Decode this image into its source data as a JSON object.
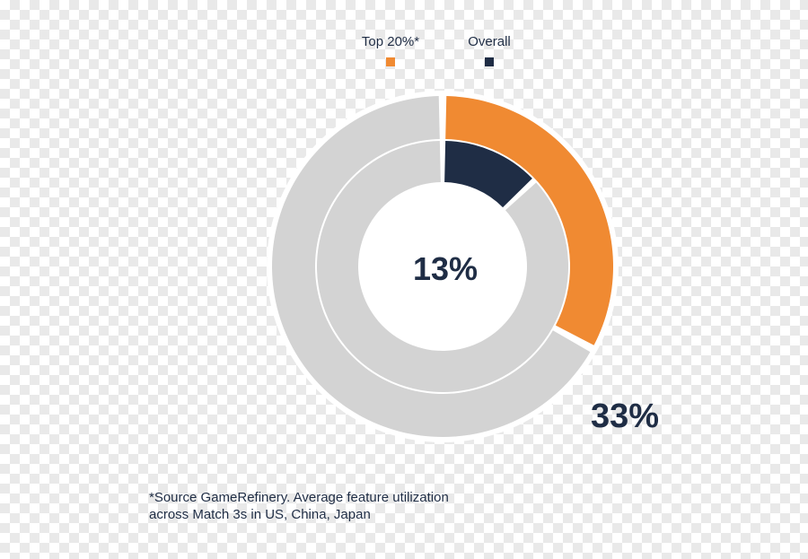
{
  "chart_data": {
    "type": "pie",
    "variant": "nested-donut",
    "legend": [
      {
        "label": "Top 20%*",
        "color": "#f08a32"
      },
      {
        "label": "Overall",
        "color": "#1f2d45"
      }
    ],
    "series": [
      {
        "name": "Top 20%*",
        "value": 33,
        "label": "33%",
        "ring": "outer",
        "color": "#f08a32"
      },
      {
        "name": "Overall",
        "value": 13,
        "label": "13%",
        "ring": "inner",
        "color": "#1f2d45"
      }
    ],
    "remainder_color": "#d3d3d3",
    "legend_position": "top"
  },
  "footnote": "*Source GameRefinery. Average feature utilization\n across Match 3s in US, China, Japan"
}
